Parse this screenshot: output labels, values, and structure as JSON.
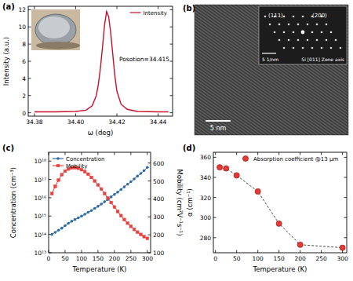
{
  "chart_data": [
    {
      "type": "line",
      "title": "(a)",
      "x_label": "ω (deg)",
      "y_label": "Intensity (a.u.)",
      "x": [
        34.38,
        34.39,
        34.4,
        34.405,
        34.408,
        34.41,
        34.411,
        34.412,
        34.413,
        34.414,
        34.415,
        34.416,
        34.417,
        34.418,
        34.419,
        34.42,
        34.422,
        34.425,
        34.43,
        34.44,
        34.445
      ],
      "series": [
        {
          "name": "Intensity",
          "color": "#c8102e",
          "marker": "none",
          "line_style": "solid",
          "values": [
            0.1,
            0.1,
            0.15,
            0.3,
            0.8,
            2.0,
            3.3,
            5.2,
            7.6,
            10.2,
            11.8,
            11.2,
            9.3,
            6.8,
            4.3,
            2.5,
            1.0,
            0.4,
            0.15,
            0.1,
            0.1
          ]
        }
      ],
      "xlim": [
        34.377,
        34.447
      ],
      "xticks": [
        34.38,
        {
          "value": 34.4,
          "label": "34.40"
        },
        34.42,
        34.44
      ],
      "ylim": [
        -0.4,
        12.4
      ],
      "yticks": [
        0,
        2,
        4,
        6,
        8,
        10,
        12
      ],
      "legend": "upper right",
      "annotations": [
        "Posotion=34.415"
      ]
    },
    {
      "type": "image",
      "title": "(b)",
      "annotations": [
        "(111)",
        "(200)",
        "5 1/nm",
        "Si [011] Zone axis",
        "5 nm"
      ]
    },
    {
      "type": "line",
      "title": "(c)",
      "x_label": "Temperature (K)",
      "y_label": "Concentration (cm⁻³)",
      "y2_label": "Mobility (cm²V⁻¹s⁻¹)",
      "x": [
        10,
        20,
        30,
        40,
        50,
        60,
        70,
        80,
        90,
        100,
        110,
        120,
        130,
        140,
        150,
        160,
        170,
        180,
        190,
        200,
        210,
        220,
        230,
        240,
        250,
        260,
        270,
        280,
        290,
        300
      ],
      "series": [
        {
          "name": "Concentration",
          "color": "#2e6da4",
          "marker": "circle",
          "line_style": "solid",
          "values": [
            100000000000000.0,
            130000000000000.0,
            170000000000000.0,
            220000000000000.0,
            300000000000000.0,
            400000000000000.0,
            520000000000000.0,
            650000000000000.0,
            800000000000000.0,
            1000000000000000.0,
            1250000000000000.0,
            1600000000000000.0,
            2000000000000000.0,
            2600000000000000.0,
            3400000000000000.0,
            4500000000000000.0,
            6000000000000000.0,
            8000000000000000.0,
            1.1e+16,
            1.5e+16,
            2e+16,
            2.8e+16,
            3.9e+16,
            5.4e+16,
            7.5e+16,
            1.05e+17,
            1.5e+17,
            2.1e+17,
            3e+17,
            4.5e+17
          ]
        },
        {
          "name": "Mobility",
          "color": "#e8413e",
          "marker": "square",
          "line_style": "solid",
          "axis": "y2",
          "values": [
            430,
            470,
            505,
            535,
            555,
            567,
            573,
            574,
            571,
            563,
            552,
            538,
            520,
            500,
            478,
            455,
            430,
            405,
            380,
            355,
            330,
            307,
            285,
            265,
            247,
            230,
            215,
            202,
            190,
            180
          ]
        }
      ],
      "xlim": [
        0,
        310
      ],
      "xticks": [
        0,
        50,
        100,
        150,
        200,
        250,
        300
      ],
      "log": "y",
      "ylim": [
        10000000000000.0,
        3e+18
      ],
      "yticks": [
        {
          "value": 10000000000000.0,
          "label": "10¹³"
        },
        {
          "value": 100000000000000.0,
          "label": "10¹⁴"
        },
        {
          "value": 1000000000000000.0,
          "label": "10¹⁵"
        },
        {
          "value": 1e+16,
          "label": "10¹⁶"
        },
        {
          "value": 1e+17,
          "label": "10¹⁷"
        },
        {
          "value": 1e+18,
          "label": "10¹⁸"
        }
      ],
      "y2lim": [
        100,
        660
      ],
      "y2ticks": [
        100,
        200,
        300,
        400,
        500,
        600
      ],
      "legend": "upper left"
    },
    {
      "type": "line",
      "title": "(d)",
      "x_label": "Temperature (K)",
      "y_label": "α (cm⁻¹)",
      "x": [
        10,
        25,
        50,
        100,
        150,
        200,
        300
      ],
      "series": [
        {
          "name": "Absorption coefficient @13 μm",
          "color": "#e53935",
          "marker": "circle",
          "line_style": "dashed",
          "values": [
            350,
            349,
            342,
            326,
            294,
            273,
            270
          ]
        }
      ],
      "xlim": [
        -5,
        310
      ],
      "xticks": [
        0,
        50,
        100,
        150,
        200,
        250,
        300
      ],
      "ylim": [
        265,
        365
      ],
      "yticks": [
        280,
        300,
        320,
        340,
        360
      ],
      "legend": "upper center"
    }
  ]
}
